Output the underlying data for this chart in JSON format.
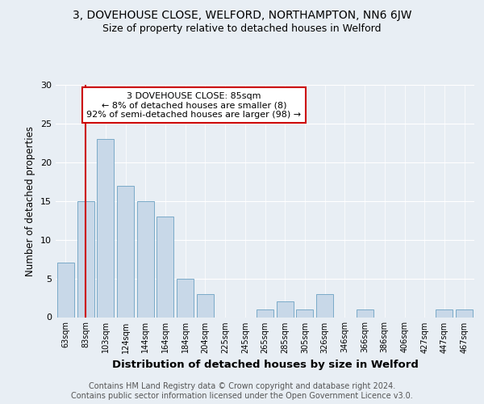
{
  "title": "3, DOVEHOUSE CLOSE, WELFORD, NORTHAMPTON, NN6 6JW",
  "subtitle": "Size of property relative to detached houses in Welford",
  "xlabel": "Distribution of detached houses by size in Welford",
  "ylabel": "Number of detached properties",
  "categories": [
    "63sqm",
    "83sqm",
    "103sqm",
    "124sqm",
    "144sqm",
    "164sqm",
    "184sqm",
    "204sqm",
    "225sqm",
    "245sqm",
    "265sqm",
    "285sqm",
    "305sqm",
    "326sqm",
    "346sqm",
    "366sqm",
    "386sqm",
    "406sqm",
    "427sqm",
    "447sqm",
    "467sqm"
  ],
  "values": [
    7,
    15,
    23,
    17,
    15,
    13,
    5,
    3,
    0,
    0,
    1,
    2,
    1,
    3,
    0,
    1,
    0,
    0,
    0,
    1,
    1
  ],
  "bar_color": "#c8d8e8",
  "bar_edgecolor": "#7aaac8",
  "vline_x": 1,
  "vline_color": "#cc0000",
  "annotation_text": "3 DOVEHOUSE CLOSE: 85sqm\n← 8% of detached houses are smaller (8)\n92% of semi-detached houses are larger (98) →",
  "annotation_box_edgecolor": "#cc0000",
  "annotation_box_facecolor": "#ffffff",
  "ylim": [
    0,
    30
  ],
  "yticks": [
    0,
    5,
    10,
    15,
    20,
    25,
    30
  ],
  "background_color": "#e8eef4",
  "plot_background": "#e8eef4",
  "footer": "Contains HM Land Registry data © Crown copyright and database right 2024.\nContains public sector information licensed under the Open Government Licence v3.0.",
  "title_fontsize": 10,
  "subtitle_fontsize": 9,
  "xlabel_fontsize": 9.5,
  "ylabel_fontsize": 8.5,
  "footer_fontsize": 7,
  "annot_fontsize": 8
}
